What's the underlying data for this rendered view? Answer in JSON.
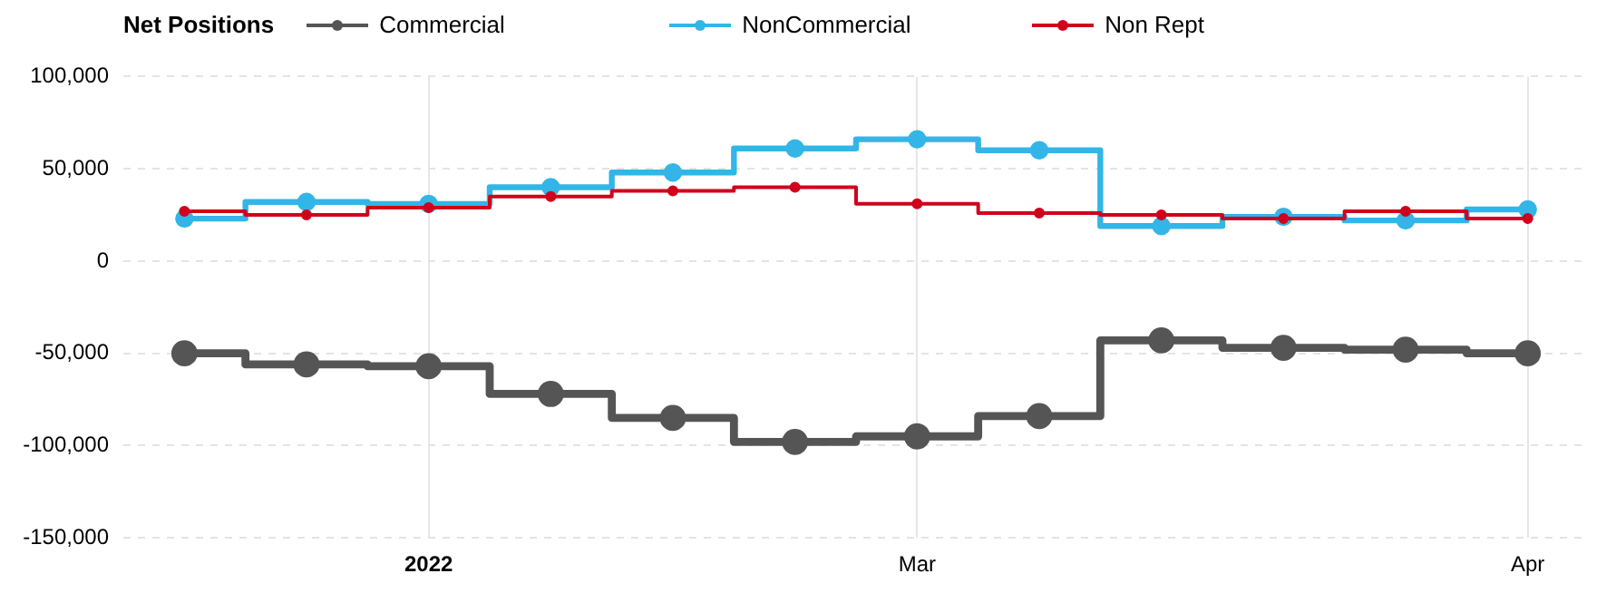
{
  "chart_data": {
    "type": "step",
    "legend_title": "Net Positions",
    "categories": [
      null,
      null,
      "2022",
      null,
      null,
      null,
      "Mar",
      null,
      null,
      null,
      null,
      "Apr"
    ],
    "series": [
      {
        "name": "Commercial",
        "color": "#555555",
        "values": [
          -50000,
          -56000,
          -57000,
          -72000,
          -85000,
          -98000,
          -95000,
          -84000,
          -43000,
          -47000,
          -48000,
          -50000
        ]
      },
      {
        "name": "NonCommercial",
        "color": "#33b5e8",
        "values": [
          23000,
          32000,
          31000,
          40000,
          48000,
          61000,
          66000,
          60000,
          19000,
          24000,
          22000,
          28000
        ]
      },
      {
        "name": "Non Rept",
        "color": "#d0021b",
        "values": [
          27000,
          25000,
          29000,
          35000,
          38000,
          40000,
          31000,
          26000,
          25000,
          23000,
          27000,
          23000
        ]
      }
    ],
    "ylim": [
      -150000,
      100000
    ],
    "yticks": [
      {
        "value": -150000,
        "label": "-150,000"
      },
      {
        "value": -100000,
        "label": "-100,000"
      },
      {
        "value": -50000,
        "label": "-50,000"
      },
      0,
      {
        "value": 50000,
        "label": "50,000"
      },
      {
        "value": 100000,
        "label": "100,000"
      }
    ],
    "grid": true,
    "legend": "top",
    "marker": "circle",
    "line_style": "solid"
  }
}
